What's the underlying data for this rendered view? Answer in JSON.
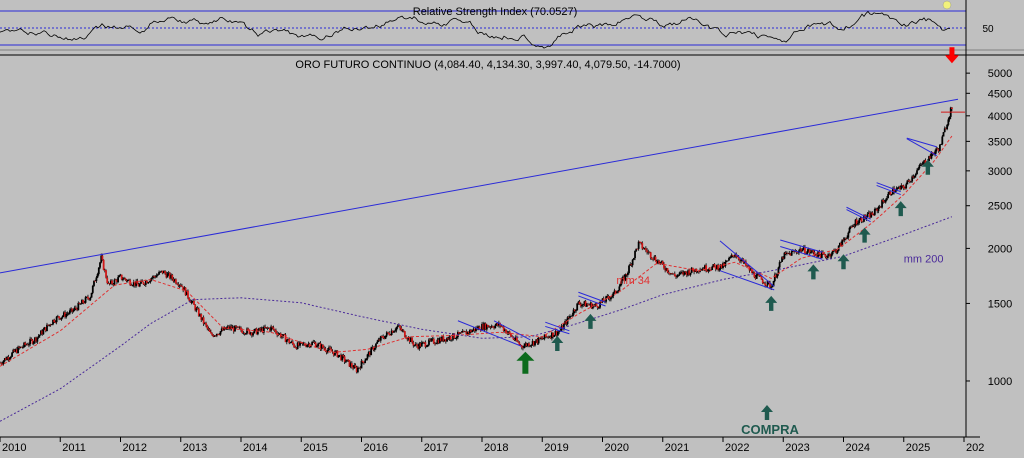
{
  "rsi_panel": {
    "label": "Relative Strength Index (70.0527)",
    "level_label": "50",
    "levels": [
      70,
      50,
      30
    ]
  },
  "chart_data": {
    "type": "line",
    "title": "ORO FUTURO CONTINUO (4,084.40, 4,134.30, 3,997.40, 4,079.50, -14.7000)",
    "yscale": "log",
    "ylim": [
      750,
      5300
    ],
    "xlim": [
      2010.0,
      2026.0
    ],
    "y_ticks": [
      1000,
      1500,
      2000,
      2500,
      3000,
      3500,
      4000,
      4500,
      5000
    ],
    "x_ticks": [
      "2010",
      "2011",
      "2012",
      "2013",
      "2014",
      "2015",
      "2016",
      "2017",
      "2018",
      "2019",
      "2020",
      "2021",
      "2022",
      "2023",
      "2024",
      "2025",
      "202"
    ],
    "grid": false,
    "colors": {
      "price": "#000000",
      "mm34": "#e03030",
      "mm200": "#4a2a9a",
      "trendline": "#2a2ad8",
      "up_arrow": "#1f5a4f",
      "down_arrow": "#ff0000"
    },
    "series": [
      {
        "name": "price",
        "x": [
          2010.0,
          2010.3,
          2010.6,
          2010.9,
          2011.2,
          2011.5,
          2011.68,
          2011.8,
          2012.0,
          2012.3,
          2012.7,
          2013.0,
          2013.3,
          2013.5,
          2013.8,
          2014.2,
          2014.5,
          2014.9,
          2015.2,
          2015.6,
          2015.92,
          2016.3,
          2016.6,
          2016.9,
          2017.3,
          2017.7,
          2018.0,
          2018.3,
          2018.65,
          2018.9,
          2019.3,
          2019.6,
          2019.9,
          2020.2,
          2020.4,
          2020.6,
          2020.9,
          2021.2,
          2021.6,
          2022.0,
          2022.2,
          2022.5,
          2022.8,
          2023.0,
          2023.3,
          2023.7,
          2023.9,
          2024.2,
          2024.5,
          2024.8,
          2025.0,
          2025.3,
          2025.6,
          2025.78,
          2025.8
        ],
        "values": [
          1100,
          1180,
          1250,
          1380,
          1440,
          1560,
          1900,
          1650,
          1720,
          1650,
          1770,
          1660,
          1420,
          1270,
          1320,
          1290,
          1320,
          1200,
          1220,
          1150,
          1060,
          1240,
          1330,
          1200,
          1240,
          1280,
          1330,
          1340,
          1200,
          1230,
          1300,
          1500,
          1480,
          1580,
          1750,
          2050,
          1880,
          1730,
          1800,
          1820,
          1950,
          1750,
          1640,
          1920,
          1990,
          1920,
          1990,
          2300,
          2400,
          2700,
          2750,
          3100,
          3400,
          4134,
          4079
        ]
      },
      {
        "name": "mm 34",
        "x": [
          2010.0,
          2011.0,
          2011.9,
          2012.5,
          2013.1,
          2013.7,
          2014.5,
          2015.5,
          2016.1,
          2016.8,
          2017.6,
          2018.3,
          2019.0,
          2019.6,
          2020.3,
          2020.9,
          2021.6,
          2022.2,
          2022.8,
          2023.3,
          2023.9,
          2024.5,
          2025.0,
          2025.5,
          2025.8
        ],
        "values": [
          1080,
          1300,
          1650,
          1700,
          1600,
          1320,
          1290,
          1160,
          1180,
          1260,
          1270,
          1290,
          1260,
          1420,
          1600,
          1850,
          1780,
          1860,
          1710,
          1900,
          1990,
          2300,
          2650,
          3150,
          3600
        ]
      },
      {
        "name": "mm 200",
        "x": [
          2010.0,
          2011.0,
          2012.0,
          2012.5,
          2013.2,
          2014.0,
          2015.0,
          2016.0,
          2017.0,
          2018.0,
          2018.8,
          2019.5,
          2020.3,
          2021.0,
          2022.0,
          2023.0,
          2024.0,
          2025.0,
          2025.8
        ],
        "values": [
          810,
          960,
          1200,
          1350,
          1530,
          1545,
          1505,
          1400,
          1310,
          1250,
          1260,
          1340,
          1450,
          1570,
          1700,
          1800,
          1920,
          2150,
          2360
        ]
      },
      {
        "name": "trendline",
        "x": [
          2010.0,
          2025.9
        ],
        "values": [
          1760,
          4360
        ]
      }
    ],
    "patterns": [
      {
        "x": [
          2017.6,
          2018.65
        ],
        "values": [
          1370,
          1200
        ],
        "x2": [
          2018.2,
          2018.8
        ],
        "values2": [
          1370,
          1240
        ]
      },
      {
        "x": [
          2019.05,
          2019.45
        ],
        "values": [
          1330,
          1280
        ],
        "x2": [
          2019.05,
          2019.45
        ],
        "values2": [
          1360,
          1300
        ]
      },
      {
        "x": [
          2019.6,
          2020.05
        ],
        "values": [
          1560,
          1480
        ],
        "x2": [
          2019.6,
          2020.05
        ],
        "values2": [
          1590,
          1510
        ]
      },
      {
        "x": [
          2021.95,
          2022.85
        ],
        "values": [
          1780,
          1610
        ],
        "x2": [
          2021.95,
          2022.85
        ],
        "values2": [
          2080,
          1640
        ]
      },
      {
        "x": [
          2022.95,
          2023.65
        ],
        "values": [
          2020,
          1890
        ],
        "x2": [
          2022.95,
          2023.65
        ],
        "values2": [
          2090,
          1960
        ]
      },
      {
        "x": [
          2024.05,
          2024.45
        ],
        "values": [
          2450,
          2300
        ],
        "x2": [
          2024.05,
          2024.45
        ],
        "values2": [
          2480,
          2330
        ]
      },
      {
        "x": [
          2024.55,
          2024.95
        ],
        "values": [
          2780,
          2650
        ],
        "x2": [
          2024.55,
          2024.95
        ],
        "values2": [
          2820,
          2690
        ]
      },
      {
        "x": [
          2025.05,
          2025.55
        ],
        "values": [
          3550,
          3250
        ],
        "x2": [
          2025.05,
          2025.55
        ],
        "values2": [
          3560,
          3400
        ]
      }
    ],
    "up_arrows": [
      {
        "x": 2018.72,
        "value": 1165,
        "size": "large"
      },
      {
        "x": 2019.25,
        "value": 1265,
        "size": "small"
      },
      {
        "x": 2019.8,
        "value": 1420,
        "size": "small"
      },
      {
        "x": 2022.8,
        "value": 1560,
        "size": "small"
      },
      {
        "x": 2023.5,
        "value": 1840,
        "size": "small"
      },
      {
        "x": 2024.0,
        "value": 1940,
        "size": "small"
      },
      {
        "x": 2024.35,
        "value": 2230,
        "size": "small"
      },
      {
        "x": 2024.95,
        "value": 2560,
        "size": "small"
      },
      {
        "x": 2025.4,
        "value": 3180,
        "size": "small"
      }
    ],
    "down_arrow": {
      "x": 2025.8,
      "value": 4500
    },
    "annotations": [
      {
        "text": "mm 34",
        "x": 2020.23,
        "value": 1660,
        "color": "#e03030"
      },
      {
        "text": "mm 200",
        "x": 2025.0,
        "value": 1860,
        "color": "#4a2a9a"
      },
      {
        "text": "COMPRA",
        "x": 2022.73,
        "value": 790,
        "color": "#1f5a4f"
      }
    ]
  }
}
